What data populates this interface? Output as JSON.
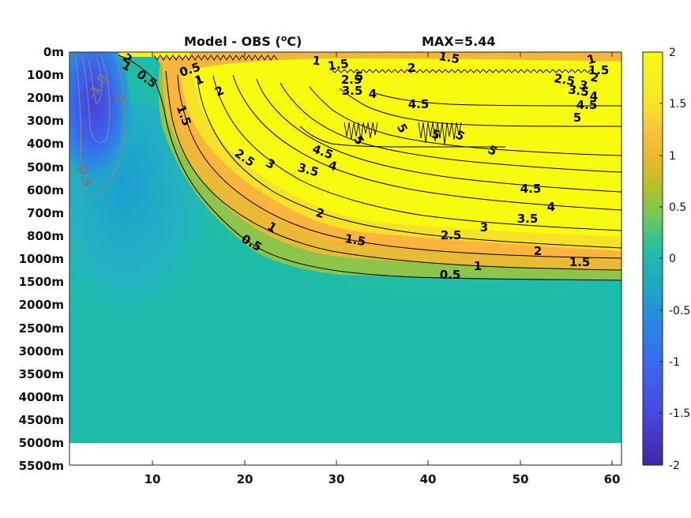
{
  "title": {
    "left_main": "Model - OBS (",
    "left_sup": "o",
    "left_unit": "C)",
    "right": "MAX=5.44"
  },
  "chart_data": {
    "type": "heatmap",
    "title": "Model - OBS (oC)   MAX=5.44",
    "x_ticks": [
      "10",
      "20",
      "30",
      "40",
      "50",
      "60"
    ],
    "x_tick_values": [
      10,
      20,
      30,
      40,
      50,
      60
    ],
    "xlim": [
      1,
      61
    ],
    "y_ticks": [
      "0m",
      "100m",
      "200m",
      "300m",
      "400m",
      "500m",
      "600m",
      "700m",
      "800m",
      "1000m",
      "1500m",
      "2000m",
      "2500m",
      "3000m",
      "3500m",
      "4000m",
      "4500m",
      "5000m",
      "5500m"
    ],
    "y_reversed": true,
    "colorbar": {
      "ticks": [
        "2",
        "1.5",
        "1",
        "0.5",
        "0",
        "-0.5",
        "-1",
        "-1.5",
        "-2"
      ],
      "clim": [
        -2,
        2
      ]
    },
    "max_value": 5.44,
    "bottom_depth_m": 5000,
    "contour_levels_positive": [
      0.5,
      1,
      1.5,
      2,
      2.5,
      3,
      3.5,
      4,
      4.5,
      5
    ],
    "contour_levels_negative": [
      -0.5,
      -1,
      -1.5
    ],
    "contour_labels": [
      "2",
      "1",
      "0.5",
      "0.5",
      "1",
      "1.5",
      "1.5",
      "1",
      "2",
      "2",
      "2.5",
      "5",
      "3.5",
      "4",
      "4.5",
      "5",
      "1",
      "1.5",
      "2.5",
      "3",
      "2",
      "3.5",
      "4",
      "4.5",
      "5",
      "1.5",
      "2",
      "1",
      "2.5",
      "3",
      "3.5",
      "4",
      "4.5",
      "4.5",
      "5",
      "5",
      "5",
      "5",
      "5",
      "2",
      "1.5",
      "2.5",
      "3",
      "3.5",
      "4",
      "4.5",
      "1",
      "0.5",
      "1",
      "0.5",
      "1.5",
      "2",
      "1.5",
      "1.5",
      "1",
      "0.5"
    ]
  }
}
